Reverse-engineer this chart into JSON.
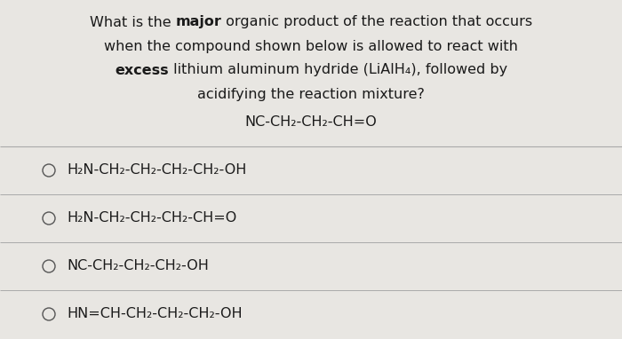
{
  "background_color": "#e8e6e2",
  "text_color": "#1a1a1a",
  "font_size": 11.5,
  "font_family": "DejaVu Sans",
  "question_block": {
    "line1_before": "What is the ",
    "line1_bold": "major",
    "line1_after": " organic product of the reaction that occurs",
    "line2": "when the compound shown below is allowed to react with",
    "line3_bold": "excess",
    "line3_after": " lithium aluminum hydride (LiAlH₄), followed by",
    "line4": "acidifying the reaction mixture?",
    "line5": "NC-CH₂-CH₂-CH=O"
  },
  "options": [
    "H₂N-CH₂-CH₂-CH₂-CH₂-OH",
    "H₂N-CH₂-CH₂-CH₂-CH=O",
    "NC-CH₂-CH₂-CH₂-OH",
    "HN=CH-CH₂-CH₂-CH₂-OH"
  ],
  "divider_color": "#aaaaaa",
  "circle_color": "#555555"
}
